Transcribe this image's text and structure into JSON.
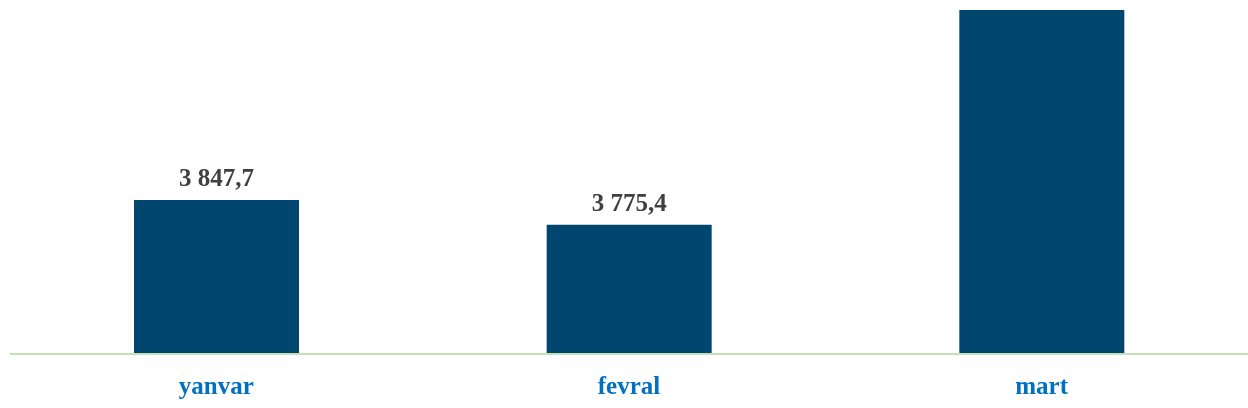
{
  "chart_data": {
    "type": "bar",
    "categories": [
      "yanvar",
      "fevral",
      "mart"
    ],
    "values": [
      3847.7,
      3775.4,
      4400
    ],
    "value_labels": [
      "3 847,7",
      "3 775,4",
      null
    ],
    "color": "#00466e",
    "ylim": [
      3400,
      4400
    ]
  }
}
